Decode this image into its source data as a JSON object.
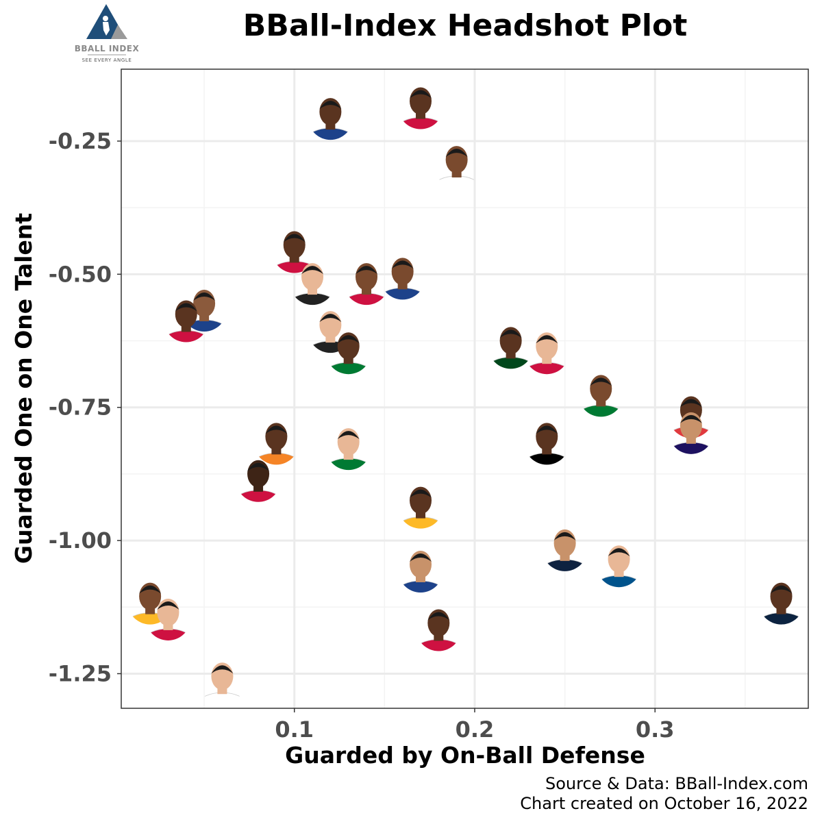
{
  "logo": {
    "name": "BBALL INDEX",
    "tagline": "SEE EVERY ANGLE"
  },
  "caption": {
    "line1": "Source & Data: BBall-Index.com",
    "line2": "Chart created on October 16, 2022"
  },
  "colors": {
    "grid_major": "#ebebeb",
    "grid_minor": "#f3f3f3",
    "panel_border": "#333333",
    "logo_blue": "#1f4e79",
    "logo_gray": "#9a9a9a",
    "skin_tones": [
      "#7a4a2e",
      "#5a3420",
      "#c8926a",
      "#e8b796",
      "#8b5a3c",
      "#3e2416"
    ]
  },
  "chart_data": {
    "type": "scatter",
    "title": "BBall-Index Headshot Plot",
    "xlabel": "Guarded by On-Ball Defense",
    "ylabel": "Guarded One on One Talent",
    "xlim": [
      0.004,
      0.385
    ],
    "ylim": [
      -1.315,
      -0.115
    ],
    "x_ticks": [
      0.1,
      0.2,
      0.3
    ],
    "x_tick_labels": [
      "0.1",
      "0.2",
      "0.3"
    ],
    "y_ticks": [
      -0.25,
      -0.5,
      -0.75,
      -1.0,
      -1.25
    ],
    "y_tick_labels": [
      "-0.25",
      "-0.50",
      "-0.75",
      "-1.00",
      "-1.25"
    ],
    "x_minor_ticks": [
      0.05,
      0.15,
      0.25,
      0.35
    ],
    "y_minor_ticks": [
      -0.375,
      -0.625,
      -0.875,
      -1.125
    ],
    "grid": true,
    "marker": "player headshot",
    "points": [
      {
        "x": 0.12,
        "y": -0.2,
        "jersey": "#1d428a",
        "skin": "#5a3420"
      },
      {
        "x": 0.17,
        "y": -0.18,
        "jersey": "#ce1141",
        "skin": "#5a3420"
      },
      {
        "x": 0.19,
        "y": -0.29,
        "jersey": "#ffffff",
        "skin": "#7a4a2e"
      },
      {
        "x": 0.1,
        "y": -0.45,
        "jersey": "#ce1141",
        "skin": "#5a3420"
      },
      {
        "x": 0.11,
        "y": -0.51,
        "jersey": "#222222",
        "skin": "#e8b796"
      },
      {
        "x": 0.14,
        "y": -0.51,
        "jersey": "#ce1141",
        "skin": "#7a4a2e"
      },
      {
        "x": 0.16,
        "y": -0.5,
        "jersey": "#1d428a",
        "skin": "#7a4a2e"
      },
      {
        "x": 0.05,
        "y": -0.56,
        "jersey": "#1d428a",
        "skin": "#8b5a3c"
      },
      {
        "x": 0.04,
        "y": -0.58,
        "jersey": "#ce1141",
        "skin": "#5a3420"
      },
      {
        "x": 0.12,
        "y": -0.6,
        "jersey": "#222222",
        "skin": "#e8b796"
      },
      {
        "x": 0.13,
        "y": -0.64,
        "jersey": "#007a33",
        "skin": "#5a3420"
      },
      {
        "x": 0.22,
        "y": -0.63,
        "jersey": "#00471b",
        "skin": "#5a3420"
      },
      {
        "x": 0.24,
        "y": -0.64,
        "jersey": "#ce1141",
        "skin": "#e8b796"
      },
      {
        "x": 0.27,
        "y": -0.72,
        "jersey": "#007a33",
        "skin": "#7a4a2e"
      },
      {
        "x": 0.32,
        "y": -0.76,
        "jersey": "#e03a3e",
        "skin": "#5a3420"
      },
      {
        "x": 0.32,
        "y": -0.79,
        "jersey": "#1d1160",
        "skin": "#c8926a"
      },
      {
        "x": 0.09,
        "y": -0.81,
        "jersey": "#f58426",
        "skin": "#5a3420"
      },
      {
        "x": 0.24,
        "y": -0.81,
        "jersey": "#000000",
        "skin": "#5a3420"
      },
      {
        "x": 0.13,
        "y": -0.82,
        "jersey": "#007a33",
        "skin": "#e8b796"
      },
      {
        "x": 0.08,
        "y": -0.88,
        "jersey": "#ce1141",
        "skin": "#3e2416"
      },
      {
        "x": 0.17,
        "y": -0.93,
        "jersey": "#fdb927",
        "skin": "#5a3420"
      },
      {
        "x": 0.25,
        "y": -1.01,
        "jersey": "#0e2240",
        "skin": "#c8926a"
      },
      {
        "x": 0.28,
        "y": -1.04,
        "jersey": "#00538c",
        "skin": "#e8b796"
      },
      {
        "x": 0.17,
        "y": -1.05,
        "jersey": "#1d428a",
        "skin": "#c8926a"
      },
      {
        "x": 0.02,
        "y": -1.11,
        "jersey": "#fdb927",
        "skin": "#7a4a2e"
      },
      {
        "x": 0.03,
        "y": -1.14,
        "jersey": "#ce1141",
        "skin": "#e8b796"
      },
      {
        "x": 0.37,
        "y": -1.11,
        "jersey": "#0c2340",
        "skin": "#5a3420"
      },
      {
        "x": 0.18,
        "y": -1.16,
        "jersey": "#ce1141",
        "skin": "#5a3420"
      },
      {
        "x": 0.06,
        "y": -1.26,
        "jersey": "#ffffff",
        "skin": "#e8b796"
      }
    ]
  }
}
